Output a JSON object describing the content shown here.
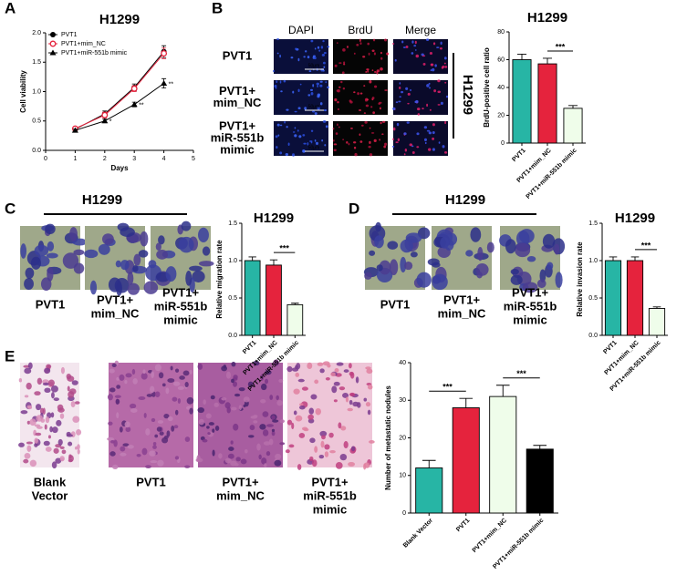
{
  "panel_labels": [
    "A",
    "B",
    "C",
    "D",
    "E"
  ],
  "chart_data": [
    {
      "type": "line",
      "title": "H1299",
      "x_label": "Days",
      "y_label": "Cell viability",
      "x": [
        1,
        2,
        3,
        4
      ],
      "xlim": [
        0,
        5
      ],
      "xticks": [
        0,
        1,
        2,
        3,
        4,
        5
      ],
      "ylim": [
        0,
        2
      ],
      "yticks": [
        {
          "value": 0,
          "label": "0.0"
        },
        {
          "value": 0.5,
          "label": "0.5"
        },
        {
          "value": 1,
          "label": "1.0"
        },
        {
          "value": 1.5,
          "label": "1.5"
        },
        {
          "value": 2,
          "label": "2.0"
        }
      ],
      "legend": "upper left",
      "series": [
        {
          "name": "PVT1",
          "color": "#000000",
          "marker": "circle",
          "values": [
            0.36,
            0.62,
            1.07,
            1.68
          ],
          "errors": [
            0.03,
            0.05,
            0.06,
            0.1
          ]
        },
        {
          "name": "PVT1+mim_NC",
          "color": "#e5233d",
          "marker": "open-circle",
          "values": [
            0.37,
            0.6,
            1.05,
            1.65
          ],
          "errors": [
            0.03,
            0.05,
            0.05,
            0.09
          ]
        },
        {
          "name": "PVT1+miR-551b mimic",
          "color": "#000000",
          "marker": "triangle",
          "values": [
            0.34,
            0.5,
            0.78,
            1.14
          ],
          "errors": [
            0.02,
            0.03,
            0.04,
            0.08
          ],
          "significance": [
            null,
            "*",
            "**",
            "**"
          ]
        }
      ]
    },
    {
      "type": "bar",
      "title": "H1299",
      "y_label": "BrdU-positive cell ratio",
      "categories": [
        "PVT1",
        "PVT1+mim_NC",
        "PVT1+miR-551b mimic"
      ],
      "values": [
        60,
        57,
        25
      ],
      "errors": [
        4,
        4,
        2
      ],
      "colors": [
        "#27b5a5",
        "#e5233d",
        "#effdea"
      ],
      "ylim": [
        0,
        80
      ],
      "yticks": [
        0,
        20,
        40,
        60,
        80
      ],
      "significance": [
        {
          "label": "***",
          "between": [
            "PVT1+mim_NC",
            "PVT1+miR-551b mimic"
          ]
        }
      ]
    },
    {
      "type": "bar",
      "title": "H1299",
      "y_label": "Relative migration rate",
      "categories": [
        "PVT1",
        "PVT1+mim_NC",
        "PVT1+miR-551b mimic"
      ],
      "values": [
        1.0,
        0.94,
        0.41
      ],
      "errors": [
        0.05,
        0.07,
        0.02
      ],
      "colors": [
        "#27b5a5",
        "#e5233d",
        "#effdea"
      ],
      "ylim": [
        0,
        1.5
      ],
      "yticks": [
        {
          "value": 0,
          "label": "0.0"
        },
        {
          "value": 0.5,
          "label": "0.5"
        },
        {
          "value": 1,
          "label": "1.0"
        },
        {
          "value": 1.5,
          "label": "1.5"
        }
      ],
      "significance": [
        {
          "label": "***",
          "between": [
            "PVT1+mim_NC",
            "PVT1+miR-551b mimic"
          ]
        }
      ]
    },
    {
      "type": "bar",
      "title": "H1299",
      "y_label": "Relative invasion rate",
      "categories": [
        "PVT1",
        "PVT1+mim_NC",
        "PVT1+miR-551b mimic"
      ],
      "values": [
        1.0,
        1.0,
        0.36
      ],
      "errors": [
        0.05,
        0.05,
        0.02
      ],
      "colors": [
        "#27b5a5",
        "#e5233d",
        "#effdea"
      ],
      "ylim": [
        0,
        1.5
      ],
      "yticks": [
        {
          "value": 0,
          "label": "0.0"
        },
        {
          "value": 0.5,
          "label": "0.5"
        },
        {
          "value": 1,
          "label": "1.0"
        },
        {
          "value": 1.5,
          "label": "1.5"
        }
      ],
      "significance": [
        {
          "label": "***",
          "between": [
            "PVT1+mim_NC",
            "PVT1+miR-551b mimic"
          ]
        }
      ]
    },
    {
      "type": "bar",
      "y_label": "Number of metastatic nodules",
      "categories": [
        "Blank Vector",
        "PVT1",
        "PVT1+mim_NC",
        "PVT1+miR-551b mimic"
      ],
      "values": [
        12,
        28,
        31,
        17
      ],
      "errors": [
        2,
        2.5,
        3,
        1
      ],
      "colors": [
        "#27b5a5",
        "#e5233d",
        "#effdea",
        "#000000"
      ],
      "ylim": [
        0,
        40
      ],
      "yticks": [
        0,
        10,
        20,
        30,
        40
      ],
      "significance": [
        {
          "label": "***",
          "between": [
            "Blank Vector",
            "PVT1"
          ]
        },
        {
          "label": "***",
          "between": [
            "PVT1+mim_NC",
            "PVT1+miR-551b mimic"
          ]
        }
      ]
    }
  ],
  "images": {
    "B": {
      "columns": [
        "DAPI",
        "BrdU",
        "Merge"
      ],
      "rows": [
        [
          "PVT1"
        ],
        [
          "PVT1+",
          "mim_NC"
        ],
        [
          "PVT1+",
          "miR-551b",
          "mimic"
        ]
      ],
      "scale_label": "50μm",
      "cell_line": "H1299"
    },
    "C": {
      "title": "H1299",
      "captions": [
        [
          "PVT1"
        ],
        [
          "PVT1+",
          "mim_NC"
        ],
        [
          "PVT1+",
          "miR-551b",
          "mimic"
        ]
      ]
    },
    "D": {
      "title": "H1299",
      "captions": [
        [
          "PVT1"
        ],
        [
          "PVT1+",
          "mim_NC"
        ],
        [
          "PVT1+",
          "miR-551b",
          "mimic"
        ]
      ]
    },
    "E": {
      "captions": [
        [
          "Blank",
          "Vector"
        ],
        [
          "PVT1"
        ],
        [
          "PVT1+",
          "mim_NC"
        ],
        [
          "PVT1+",
          "miR-551b",
          "mimic"
        ]
      ]
    }
  }
}
